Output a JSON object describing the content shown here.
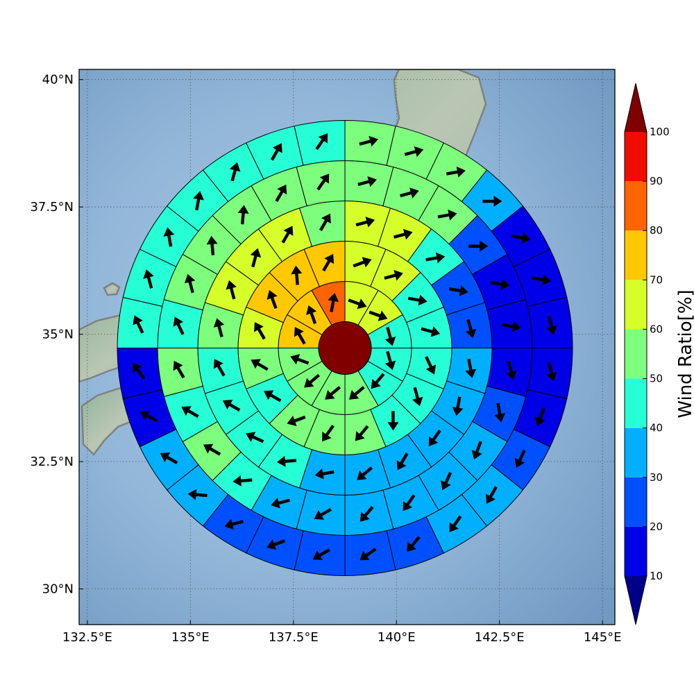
{
  "chart_data": {
    "type": "polar-sector-map",
    "title": "",
    "colorbar": {
      "label": "Wind Ratio[%]",
      "ticks": [
        "10",
        "20",
        "30",
        "40",
        "50",
        "60",
        "70",
        "80",
        "90",
        "100"
      ],
      "under_color": "#00008a",
      "over_color": "#800000",
      "colors": [
        "#0000e8",
        "#0050ff",
        "#00b0ff",
        "#26ffd5",
        "#7dff7d",
        "#d6ff29",
        "#ffc800",
        "#ff6400",
        "#f00c00"
      ]
    },
    "axes": {
      "x_ticks": [
        "132.5°E",
        "135°E",
        "137.5°E",
        "140°E",
        "142.5°E",
        "145°E"
      ],
      "y_ticks": [
        "40°N",
        "37.5°N",
        "35°N",
        "32.5°N",
        "30°N"
      ],
      "xlim_deg": [
        132.3,
        145.3
      ],
      "ylim_deg": [
        29.3,
        40.2
      ],
      "grid": true,
      "grid_style": "dotted"
    },
    "center_deg": [
      138.75,
      34.73
    ],
    "center_value": 100,
    "rings": [
      {
        "ring": 1,
        "values": [
          65,
          65,
          45,
          45,
          45,
          55,
          55,
          55,
          55,
          75,
          75,
          85
        ],
        "arrows": [
          110,
          110,
          165,
          165,
          220,
          230,
          230,
          230,
          290,
          330,
          340,
          10
        ]
      },
      {
        "ring": 2,
        "values": [
          65,
          65,
          45,
          45,
          45,
          45,
          45,
          55,
          55,
          55,
          45,
          55,
          65,
          75,
          75,
          75
        ],
        "arrows": [
          70,
          75,
          100,
          105,
          155,
          165,
          180,
          220,
          215,
          250,
          300,
          300,
          330,
          340,
          355,
          30
        ]
      },
      {
        "ring": 3,
        "values": [
          65,
          65,
          45,
          25,
          25,
          35,
          35,
          35,
          35,
          35,
          35,
          45,
          45,
          45,
          45,
          55,
          65,
          65,
          65,
          55
        ],
        "arrows": [
          75,
          75,
          80,
          100,
          165,
          170,
          190,
          215,
          210,
          230,
          260,
          265,
          295,
          300,
          330,
          345,
          345,
          15,
          30,
          30
        ]
      },
      {
        "ring": 4,
        "values": [
          55,
          55,
          55,
          25,
          15,
          15,
          15,
          25,
          35,
          35,
          35,
          35,
          35,
          35,
          45,
          55,
          45,
          55,
          45,
          55,
          55,
          55,
          55,
          55
        ],
        "arrows": [
          75,
          75,
          80,
          90,
          100,
          100,
          165,
          170,
          200,
          205,
          215,
          220,
          240,
          255,
          265,
          300,
          300,
          330,
          335,
          345,
          355,
          5,
          30,
          35
        ]
      },
      {
        "ring": 5,
        "values": [
          55,
          55,
          55,
          35,
          15,
          15,
          15,
          15,
          15,
          25,
          35,
          35,
          25,
          25,
          25,
          25,
          25,
          35,
          35,
          15,
          15,
          45,
          45,
          45,
          45,
          45,
          45,
          45
        ],
        "arrows": [
          75,
          75,
          80,
          90,
          100,
          100,
          165,
          165,
          200,
          205,
          210,
          215,
          220,
          235,
          240,
          250,
          255,
          275,
          300,
          300,
          325,
          335,
          345,
          350,
          10,
          15,
          30,
          35
        ]
      }
    ]
  }
}
